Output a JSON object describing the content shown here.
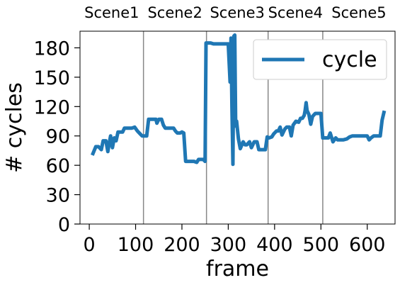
{
  "chart_data": {
    "type": "line",
    "title": "",
    "xlabel": "frame",
    "ylabel": "# cycles",
    "xlim": [
      -20,
      660
    ],
    "ylim": [
      0,
      197
    ],
    "x_ticks": [
      0,
      100,
      200,
      300,
      400,
      500,
      600
    ],
    "y_ticks": [
      0,
      30,
      60,
      90,
      120,
      150,
      180
    ],
    "grid": false,
    "legend_position": "top-right",
    "scene_boundaries": [
      117,
      253,
      386,
      504
    ],
    "scene_labels": [
      "Scene1",
      "Scene2",
      "Scene3",
      "Scene4",
      "Scene5"
    ],
    "series": [
      {
        "name": "cycle",
        "color": "#1f77b4",
        "x": [
          8,
          14,
          20,
          26,
          30,
          36,
          40,
          44,
          46,
          50,
          54,
          58,
          62,
          68,
          72,
          76,
          80,
          86,
          92,
          98,
          104,
          108,
          114,
          118,
          124,
          128,
          134,
          138,
          144,
          146,
          150,
          156,
          160,
          164,
          170,
          176,
          182,
          186,
          190,
          196,
          200,
          204,
          208,
          212,
          220,
          226,
          232,
          236,
          240,
          246,
          250,
          252,
          256,
          262,
          268,
          272,
          278,
          284,
          290,
          296,
          300,
          304,
          306,
          308,
          310,
          312,
          314,
          316,
          318,
          322,
          326,
          332,
          336,
          340,
          346,
          350,
          356,
          362,
          366,
          372,
          376,
          380,
          384,
          388,
          394,
          398,
          404,
          408,
          412,
          416,
          422,
          426,
          432,
          436,
          440,
          446,
          452,
          456,
          460,
          464,
          466,
          468,
          470,
          474,
          478,
          482,
          488,
          494,
          500,
          504,
          510,
          516,
          520,
          526,
          532,
          536,
          542,
          548,
          556,
          562,
          568,
          574,
          580,
          586,
          592,
          596,
          600,
          604,
          608,
          614,
          618,
          624,
          628,
          632,
          636
        ],
        "y": [
          72,
          79,
          79,
          76,
          85,
          85,
          74,
          85,
          90,
          78,
          88,
          85,
          94,
          94,
          94,
          98,
          98,
          98,
          98,
          99,
          95,
          93,
          90,
          90,
          90,
          107,
          107,
          107,
          107,
          103,
          107,
          107,
          101,
          98,
          98,
          98,
          98,
          95,
          93,
          93,
          94,
          93,
          64,
          64,
          64,
          64,
          63,
          66,
          66,
          66,
          64,
          185,
          185,
          185,
          184,
          184,
          184,
          184,
          184,
          184,
          184,
          145,
          190,
          120,
          61,
          192,
          193,
          100,
          105,
          87,
          77,
          84,
          81,
          81,
          84,
          78,
          84,
          84,
          76,
          76,
          76,
          76,
          89,
          88,
          89,
          92,
          95,
          95,
          99,
          91,
          97,
          99,
          99,
          90,
          101,
          105,
          104,
          108,
          108,
          111,
          116,
          124,
          116,
          112,
          102,
          110,
          113,
          113,
          113,
          88,
          88,
          88,
          93,
          84,
          88,
          86,
          86,
          86,
          87,
          89,
          90,
          90,
          90,
          90,
          90,
          90,
          90,
          86,
          88,
          90,
          90,
          90,
          90,
          106,
          114
        ]
      }
    ]
  }
}
